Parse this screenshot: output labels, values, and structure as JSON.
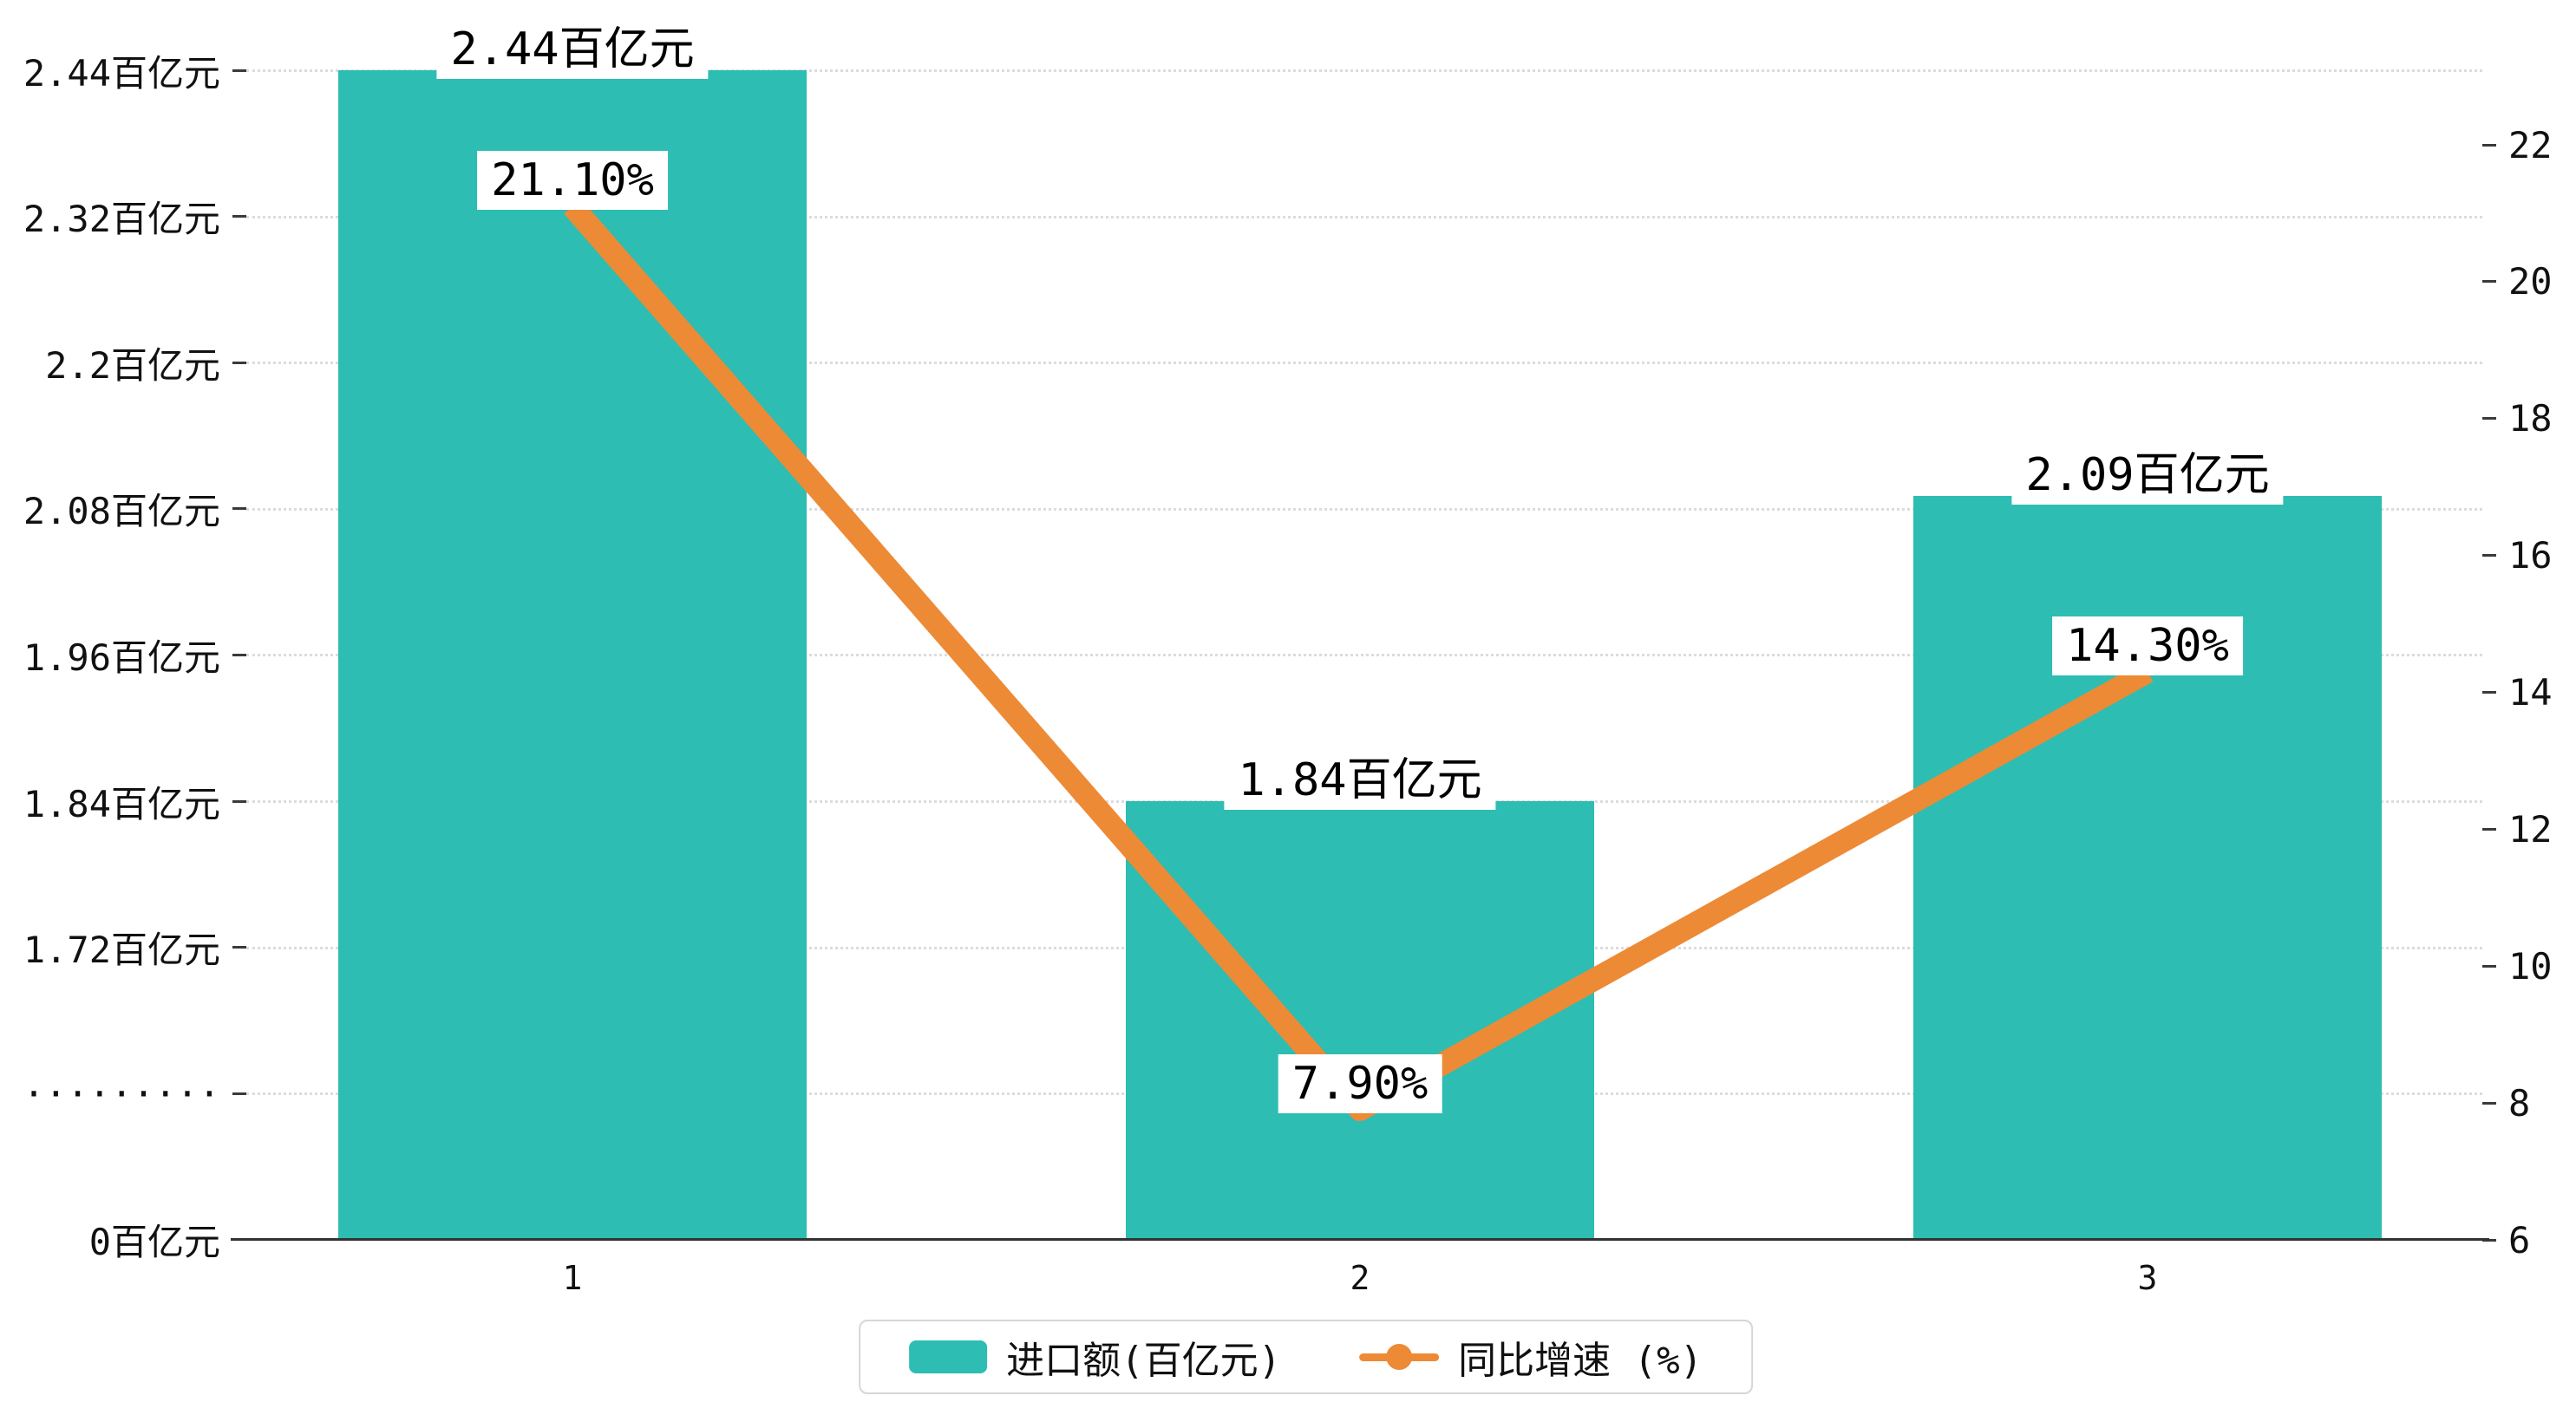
{
  "chart_data": {
    "type": "bar",
    "categories": [
      "1",
      "2",
      "3"
    ],
    "series": [
      {
        "name": "进口额(百亿元)",
        "type": "bar",
        "color": "#2ebdb2",
        "values": [
          2.44,
          1.84,
          2.09
        ],
        "labels": [
          "2.44百亿元",
          "1.84百亿元",
          "2.09百亿元"
        ]
      },
      {
        "name": "同比增速 (%)",
        "type": "line",
        "color": "#ed8a36",
        "values": [
          21.1,
          7.9,
          14.3
        ],
        "labels": [
          "21.10%",
          "7.90%",
          "14.30%"
        ]
      }
    ],
    "left_axis": {
      "tick_labels": [
        "2.44百亿元",
        "2.32百亿元",
        "2.2百亿元",
        "2.08百亿元",
        "1.96百亿元",
        "1.84百亿元",
        "1.72百亿元",
        "·········",
        "0百亿元"
      ],
      "tick_values": [
        2.44,
        2.32,
        2.2,
        2.08,
        1.96,
        1.84,
        1.72,
        null,
        0
      ],
      "broken_axis": true
    },
    "right_axis": {
      "tick_labels": [
        "22",
        "20",
        "18",
        "16",
        "14",
        "12",
        "10",
        "8",
        "6"
      ],
      "min": 6,
      "max": 22
    },
    "x_axis": {
      "labels": [
        "1",
        "2",
        "3"
      ]
    },
    "legend": {
      "items": [
        {
          "label": "进口额(百亿元)",
          "type": "bar",
          "color": "#2ebdb2"
        },
        {
          "label": "同比增速 (%)",
          "type": "line",
          "color": "#ed8a36"
        }
      ]
    },
    "grid": {
      "horizontal": "dotted",
      "vertical": "none"
    },
    "background": "#ffffff"
  }
}
